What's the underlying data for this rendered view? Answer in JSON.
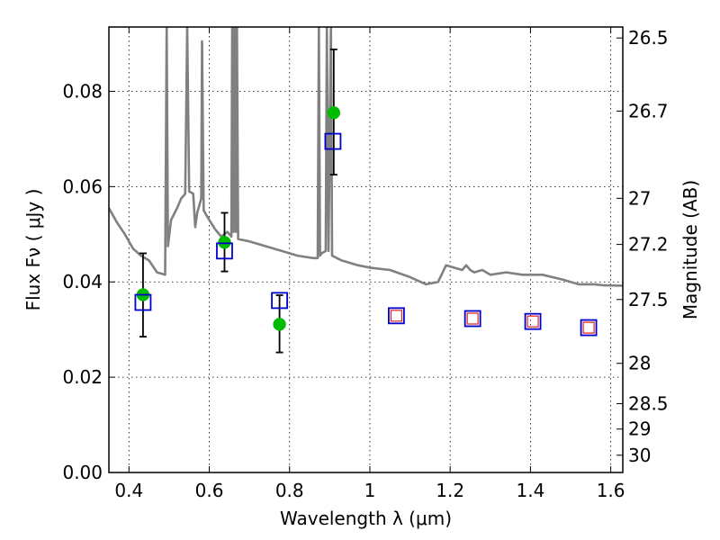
{
  "chart_data": {
    "type": "scatter",
    "xlabel": "Wavelength  λ (μm)",
    "ylabel": "Flux  Fν  ( μJy )",
    "y2label": "Magnitude (AB)",
    "xlim": [
      0.35,
      1.63
    ],
    "ylim": [
      0.0,
      0.0935
    ],
    "grid": true,
    "x_ticks": [
      {
        "value": 0.4,
        "label": "0.4"
      },
      {
        "value": 0.6,
        "label": "0.6"
      },
      {
        "value": 0.8,
        "label": "0.8"
      },
      {
        "value": 1.0,
        "label": "1"
      },
      {
        "value": 1.2,
        "label": "1.2"
      },
      {
        "value": 1.4,
        "label": "1.4"
      },
      {
        "value": 1.6,
        "label": "1.6"
      }
    ],
    "y_ticks": [
      {
        "value": 0.0,
        "label": "0.00"
      },
      {
        "value": 0.02,
        "label": "0.02"
      },
      {
        "value": 0.04,
        "label": "0.04"
      },
      {
        "value": 0.06,
        "label": "0.06"
      },
      {
        "value": 0.08,
        "label": "0.08"
      }
    ],
    "y2_ticks": [
      {
        "mag": 26.5,
        "label": "26.5"
      },
      {
        "mag": 26.7,
        "label": "26.7"
      },
      {
        "mag": 27.0,
        "label": "27"
      },
      {
        "mag": 27.2,
        "label": "27.2"
      },
      {
        "mag": 27.5,
        "label": "27.5"
      },
      {
        "mag": 28.0,
        "label": "28"
      },
      {
        "mag": 28.5,
        "label": "28.5"
      },
      {
        "mag": 29.0,
        "label": "29"
      },
      {
        "mag": 30.0,
        "label": "30"
      }
    ],
    "series": [
      {
        "kind": "line",
        "color": "#808080",
        "points": [
          [
            0.35,
            0.0555
          ],
          [
            0.37,
            0.0525
          ],
          [
            0.39,
            0.05
          ],
          [
            0.41,
            0.047
          ],
          [
            0.43,
            0.0455
          ],
          [
            0.45,
            0.0445
          ],
          [
            0.47,
            0.042
          ],
          [
            0.49,
            0.0415
          ],
          [
            0.494,
            0.0935
          ],
          [
            0.497,
            0.0475
          ],
          [
            0.505,
            0.053
          ],
          [
            0.52,
            0.0555
          ],
          [
            0.53,
            0.0575
          ],
          [
            0.54,
            0.0585
          ],
          [
            0.545,
            0.0935
          ],
          [
            0.55,
            0.059
          ],
          [
            0.56,
            0.0585
          ],
          [
            0.565,
            0.0515
          ],
          [
            0.57,
            0.0545
          ],
          [
            0.58,
            0.0575
          ],
          [
            0.582,
            0.0905
          ],
          [
            0.586,
            0.055
          ],
          [
            0.6,
            0.053
          ],
          [
            0.615,
            0.051
          ],
          [
            0.63,
            0.0495
          ],
          [
            0.645,
            0.0505
          ],
          [
            0.655,
            0.0495
          ],
          [
            0.657,
            0.0935
          ],
          [
            0.66,
            0.0505
          ],
          [
            0.663,
            0.0935
          ],
          [
            0.666,
            0.0505
          ],
          [
            0.669,
            0.0935
          ],
          [
            0.672,
            0.049
          ],
          [
            0.7,
            0.0485
          ],
          [
            0.74,
            0.0475
          ],
          [
            0.78,
            0.0465
          ],
          [
            0.82,
            0.0455
          ],
          [
            0.86,
            0.045
          ],
          [
            0.87,
            0.045
          ],
          [
            0.873,
            0.0935
          ],
          [
            0.876,
            0.0455
          ],
          [
            0.88,
            0.046
          ],
          [
            0.89,
            0.0465
          ],
          [
            0.893,
            0.0935
          ],
          [
            0.897,
            0.0465
          ],
          [
            0.903,
            0.0935
          ],
          [
            0.906,
            0.0455
          ],
          [
            0.93,
            0.0445
          ],
          [
            0.97,
            0.0435
          ],
          [
            1.0,
            0.043
          ],
          [
            1.05,
            0.0425
          ],
          [
            1.1,
            0.041
          ],
          [
            1.14,
            0.0395
          ],
          [
            1.17,
            0.04
          ],
          [
            1.19,
            0.0435
          ],
          [
            1.21,
            0.043
          ],
          [
            1.23,
            0.0425
          ],
          [
            1.24,
            0.0435
          ],
          [
            1.25,
            0.0425
          ],
          [
            1.26,
            0.042
          ],
          [
            1.28,
            0.0425
          ],
          [
            1.3,
            0.0415
          ],
          [
            1.34,
            0.042
          ],
          [
            1.38,
            0.0415
          ],
          [
            1.43,
            0.0415
          ],
          [
            1.48,
            0.0405
          ],
          [
            1.52,
            0.0395
          ],
          [
            1.56,
            0.0395
          ],
          [
            1.58,
            0.0393
          ],
          [
            1.63,
            0.0392
          ]
        ]
      },
      {
        "kind": "errorbar",
        "color": "#000000",
        "points": [
          {
            "x": 0.435,
            "y": 0.0373,
            "low": 0.0285,
            "high": 0.046
          },
          {
            "x": 0.638,
            "y": 0.0483,
            "low": 0.0422,
            "high": 0.0545
          },
          {
            "x": 0.775,
            "y": 0.0311,
            "low": 0.0252,
            "high": 0.0372
          },
          {
            "x": 0.91,
            "y": 0.0755,
            "low": 0.0625,
            "high": 0.0888
          }
        ]
      },
      {
        "kind": "marker",
        "shape": "circle",
        "color": "#00bb00",
        "points": [
          [
            0.435,
            0.0373
          ],
          [
            0.638,
            0.0483
          ],
          [
            0.775,
            0.0311
          ],
          [
            0.91,
            0.0755
          ]
        ]
      },
      {
        "kind": "marker",
        "shape": "square-open",
        "color": "#0000cc",
        "points": [
          [
            0.435,
            0.0357
          ],
          [
            0.638,
            0.0465
          ],
          [
            0.775,
            0.0361
          ],
          [
            0.908,
            0.0695
          ],
          [
            1.066,
            0.0329
          ],
          [
            1.256,
            0.0323
          ],
          [
            1.406,
            0.0317
          ],
          [
            1.545,
            0.0304
          ]
        ]
      },
      {
        "kind": "marker",
        "shape": "square-open-small",
        "color": "#dd2222",
        "points": [
          [
            1.066,
            0.0329
          ],
          [
            1.256,
            0.0323
          ],
          [
            1.406,
            0.0317
          ],
          [
            1.545,
            0.0304
          ]
        ]
      }
    ]
  }
}
